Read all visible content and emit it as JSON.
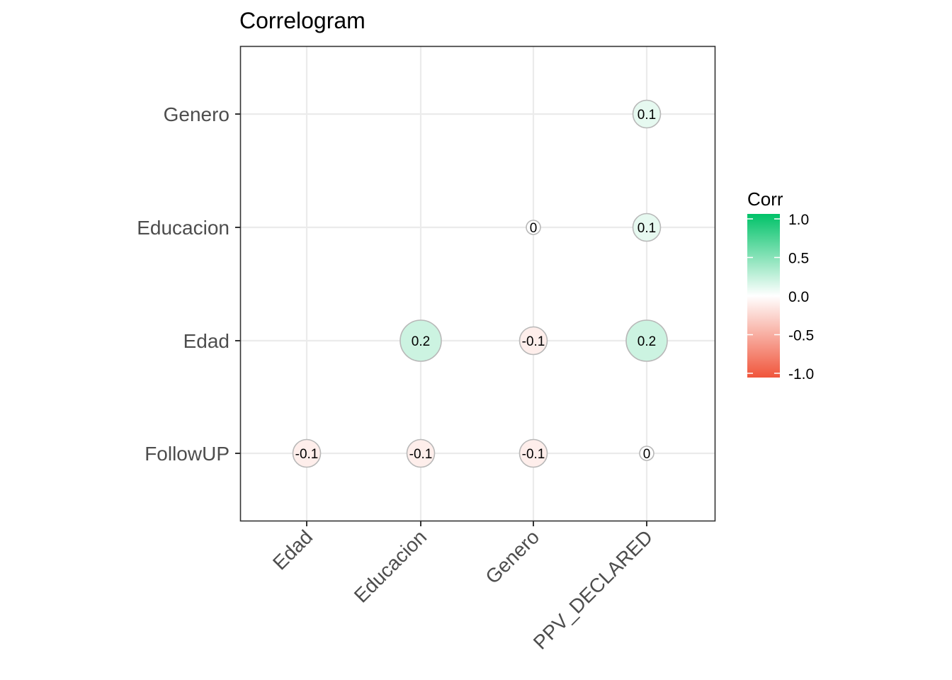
{
  "chart_data": {
    "type": "heatmap",
    "title": "Correlogram",
    "x_categories": [
      "Edad",
      "Educacion",
      "Genero",
      "PPV_DECLARED"
    ],
    "y_categories": [
      "FollowUP",
      "Edad",
      "Educacion",
      "Genero"
    ],
    "cells": [
      {
        "x": "PPV_DECLARED",
        "y": "Genero",
        "value": 0.1,
        "label": "0.1"
      },
      {
        "x": "Genero",
        "y": "Educacion",
        "value": 0.0,
        "label": "0"
      },
      {
        "x": "PPV_DECLARED",
        "y": "Educacion",
        "value": 0.1,
        "label": "0.1"
      },
      {
        "x": "Educacion",
        "y": "Edad",
        "value": 0.2,
        "label": "0.2"
      },
      {
        "x": "Genero",
        "y": "Edad",
        "value": -0.1,
        "label": "-0.1"
      },
      {
        "x": "PPV_DECLARED",
        "y": "Edad",
        "value": 0.2,
        "label": "0.2"
      },
      {
        "x": "Edad",
        "y": "FollowUP",
        "value": -0.1,
        "label": "-0.1"
      },
      {
        "x": "Educacion",
        "y": "FollowUP",
        "value": -0.1,
        "label": "-0.1"
      },
      {
        "x": "Genero",
        "y": "FollowUP",
        "value": -0.1,
        "label": "-0.1"
      },
      {
        "x": "PPV_DECLARED",
        "y": "FollowUP",
        "value": 0.0,
        "label": "0"
      }
    ],
    "legend": {
      "title": "Corr",
      "position": "right",
      "ticks": [
        "1.0",
        "0.5",
        "0.0",
        "-0.5",
        "-1.0"
      ],
      "range": [
        -1,
        1
      ],
      "colors": {
        "low": "#f0553b",
        "mid": "#ffffff",
        "high": "#00c268"
      }
    },
    "grid": true
  }
}
